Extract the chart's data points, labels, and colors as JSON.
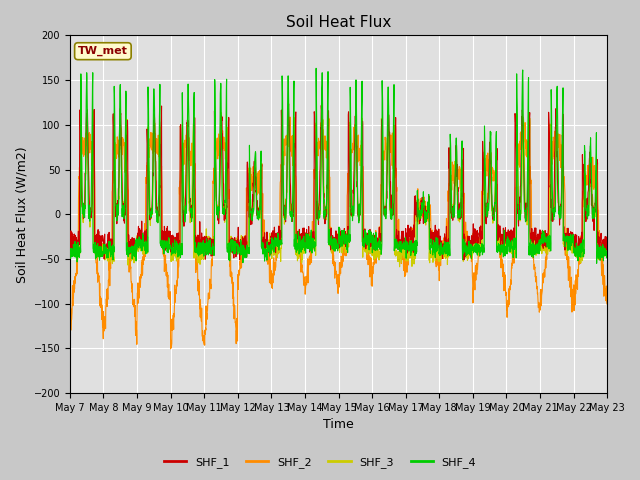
{
  "title": "Soil Heat Flux",
  "ylabel": "Soil Heat Flux (W/m2)",
  "xlabel": "Time",
  "ylim": [
    -200,
    200
  ],
  "yticks": [
    -200,
    -150,
    -100,
    -50,
    0,
    50,
    100,
    150,
    200
  ],
  "annotation": "TW_met",
  "annotation_color": "#8B0000",
  "annotation_bg": "#FFFACD",
  "annotation_border": "#8B8000",
  "series_colors": {
    "SHF_1": "#CC0000",
    "SHF_2": "#FF8C00",
    "SHF_3": "#CCCC00",
    "SHF_4": "#00CC00"
  },
  "bg_color": "#C8C8C8",
  "plot_bg_color": "#E0E0E0",
  "grid_color": "#FFFFFF",
  "n_days": 16,
  "start_day": 7,
  "points_per_day": 144,
  "title_fontsize": 11,
  "label_fontsize": 9,
  "tick_fontsize": 7,
  "day_peak_amps": [
    155,
    145,
    145,
    140,
    150,
    105,
    155,
    155,
    145,
    145,
    50,
    115,
    120,
    155,
    145,
    110
  ],
  "day_cloud_factors": [
    1.0,
    1.0,
    1.0,
    1.0,
    1.0,
    0.7,
    1.0,
    1.0,
    1.0,
    1.0,
    0.35,
    0.75,
    0.8,
    1.0,
    1.0,
    0.75
  ]
}
